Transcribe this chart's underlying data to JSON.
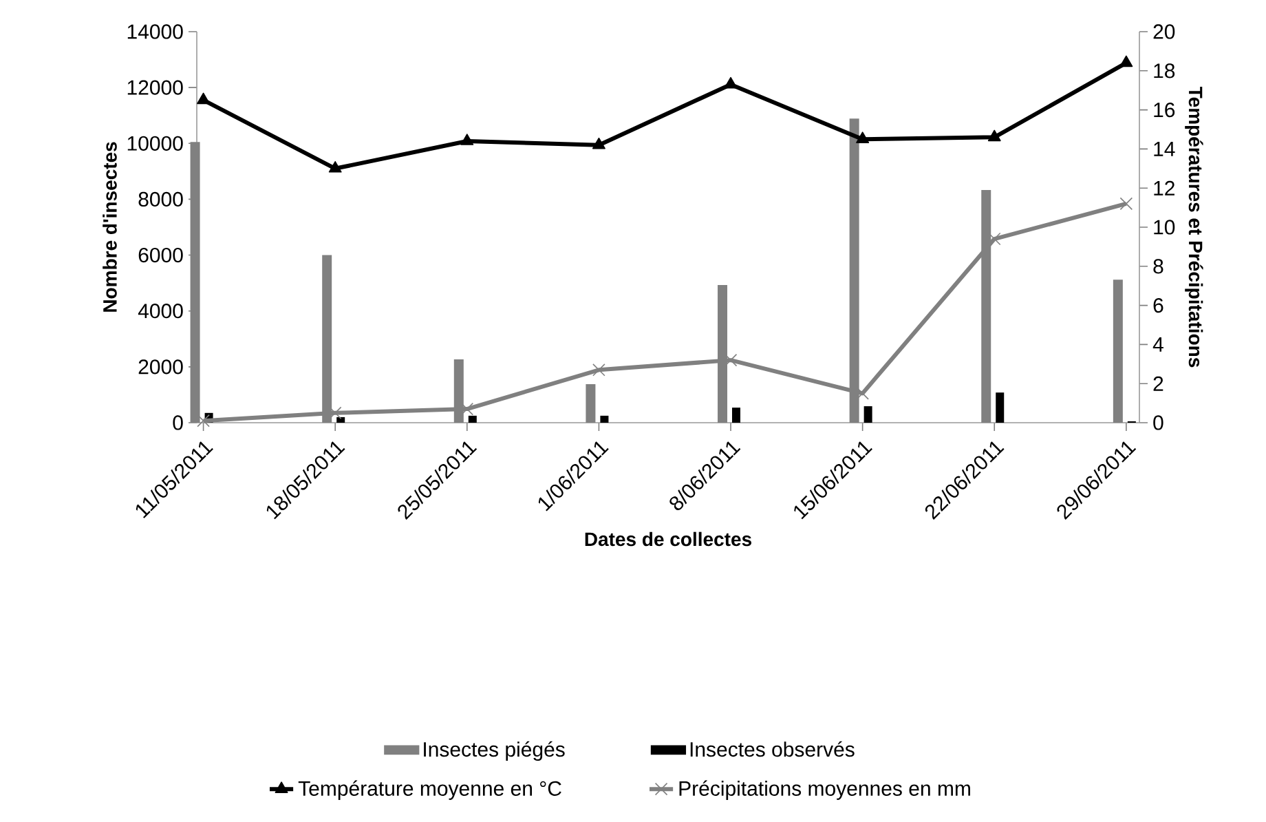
{
  "chart_data": {
    "type": "bar",
    "xlabel": "Dates de collectes",
    "ylabel": "Nombre d'insectes",
    "y2label": "Températures et Précipitations",
    "categories": [
      "11/05/2011",
      "18/05/2011",
      "25/05/2011",
      "1/06/2011",
      "8/06/2011",
      "15/06/2011",
      "22/06/2011",
      "29/06/2011"
    ],
    "series": [
      {
        "name": "Insectes piégés",
        "color": "#808080",
        "values": [
          10050,
          6000,
          2270,
          1380,
          4930,
          10890,
          8330,
          5120
        ]
      },
      {
        "name": "Insectes observés",
        "color": "#000000",
        "values": [
          350,
          200,
          250,
          250,
          540,
          590,
          1080,
          50
        ]
      },
      {
        "name": "Température moyenne en °C",
        "type": "line",
        "axis": "y2",
        "color": "#000000",
        "marker": "triangle",
        "values": [
          16.5,
          13.0,
          14.4,
          14.2,
          17.3,
          14.5,
          14.6,
          18.4
        ]
      },
      {
        "name": "Précipitations moyennes en mm",
        "type": "line",
        "axis": "y2",
        "color": "#808080",
        "marker": "cross",
        "values": [
          0.1,
          0.5,
          0.7,
          2.7,
          3.2,
          1.5,
          9.4,
          11.2
        ]
      }
    ],
    "ylim": [
      0,
      14000
    ],
    "yticks": [
      0,
      2000,
      4000,
      6000,
      8000,
      10000,
      12000,
      14000
    ],
    "y2lim": [
      0,
      20
    ],
    "y2ticks": [
      0,
      2,
      4,
      6,
      8,
      10,
      12,
      14,
      16,
      18,
      20
    ],
    "grid": false,
    "legend": "bottom"
  }
}
